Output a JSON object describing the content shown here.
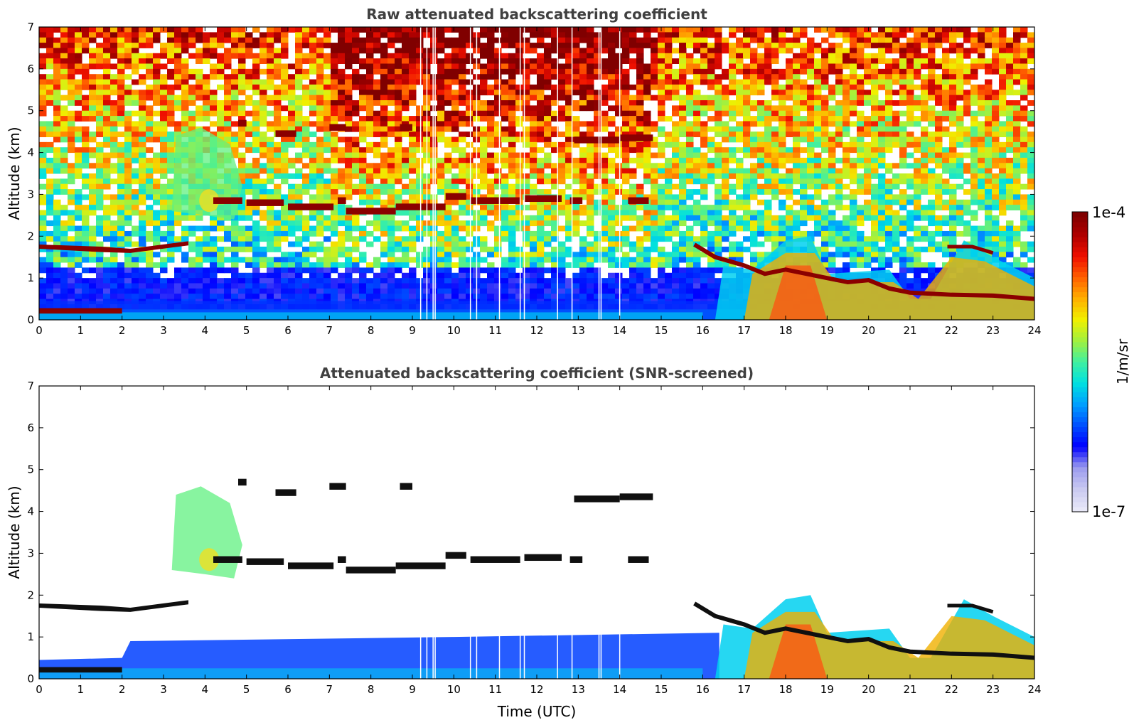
{
  "chart_data": [
    {
      "type": "heatmap",
      "title": "Raw attenuated backscattering coefficient",
      "xlabel": "",
      "ylabel": "Altitude (km)",
      "xlim": [
        0,
        24
      ],
      "ylim": [
        0,
        7
      ],
      "xticks": [
        "0",
        "1",
        "2",
        "3",
        "4",
        "5",
        "6",
        "7",
        "8",
        "9",
        "10",
        "11",
        "12",
        "13",
        "14",
        "15",
        "16",
        "17",
        "18",
        "19",
        "20",
        "21",
        "22",
        "23",
        "24"
      ],
      "yticks": [
        "0",
        "1",
        "2",
        "3",
        "4",
        "5",
        "6",
        "7"
      ],
      "layers": [
        {
          "name": "low cloud layer 0-2 UTC",
          "t_start": 0,
          "t_end": 2,
          "alt_km": 0.2
        },
        {
          "name": "cloud layer ~1.8 km",
          "t_start": 0,
          "t_end": 3.6,
          "alt_km": 1.8
        },
        {
          "name": "mid cloud layer ~2.8 km",
          "t_start": 4.2,
          "t_end": 14.7,
          "alt_km": 2.8
        },
        {
          "name": "upper cloud layer ~4.3 km",
          "t_start": 6,
          "t_end": 14.8,
          "alt_km": 4.4
        },
        {
          "name": "descending cloud base",
          "t_start": 15.5,
          "t_end": 24,
          "alt_km": 0.6
        },
        {
          "name": "boundary layer",
          "t_start": 0,
          "t_end": 24,
          "alt_km": 0.5
        }
      ]
    },
    {
      "type": "heatmap",
      "title": "Attenuated backscattering coefficient (SNR-screened)",
      "xlabel": "Time (UTC)",
      "ylabel": "Altitude (km)",
      "xlim": [
        0,
        24
      ],
      "ylim": [
        0,
        7
      ],
      "xticks": [
        "0",
        "1",
        "2",
        "3",
        "4",
        "5",
        "6",
        "7",
        "8",
        "9",
        "10",
        "11",
        "12",
        "13",
        "14",
        "15",
        "16",
        "17",
        "18",
        "19",
        "20",
        "21",
        "22",
        "23",
        "24"
      ],
      "yticks": [
        "0",
        "1",
        "2",
        "3",
        "4",
        "5",
        "6",
        "7"
      ]
    }
  ],
  "colorbar": {
    "max_label": "1e-4",
    "min_label": "1e-7",
    "unit_label": "1/m/sr",
    "colors": [
      "#e8e8f8",
      "#c8c8f0",
      "#9a9aee",
      "#0000ff",
      "#0050ff",
      "#00a0ff",
      "#00e0e0",
      "#40f0a0",
      "#a0f040",
      "#f0f000",
      "#ffb000",
      "#ff6000",
      "#f01000",
      "#b00000",
      "#800000"
    ]
  }
}
